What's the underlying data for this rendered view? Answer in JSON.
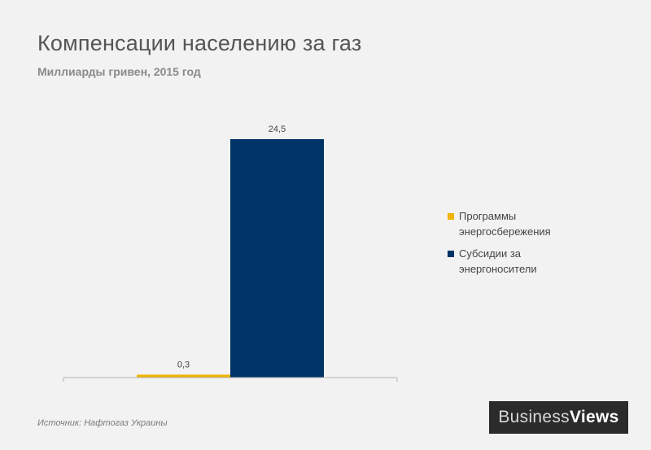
{
  "chart_data": {
    "type": "bar",
    "title": "Компенсации населению за газ",
    "subtitle": "Миллиарды гривен, 2015 год",
    "categories": [
      ""
    ],
    "series": [
      {
        "name": "Программы энергосбережения",
        "values": [
          0.3
        ],
        "label": "0,3",
        "color": "#f0b400"
      },
      {
        "name": "Субсидии за энергоносители",
        "values": [
          24.5
        ],
        "label": "24,5",
        "color": "#003366"
      }
    ],
    "ylim": [
      0,
      24.5
    ],
    "grid": false,
    "legend_position": "right"
  },
  "source": "Источник: Нафтогаз Украины",
  "logo": {
    "part1": "Business",
    "part2": "Views"
  }
}
